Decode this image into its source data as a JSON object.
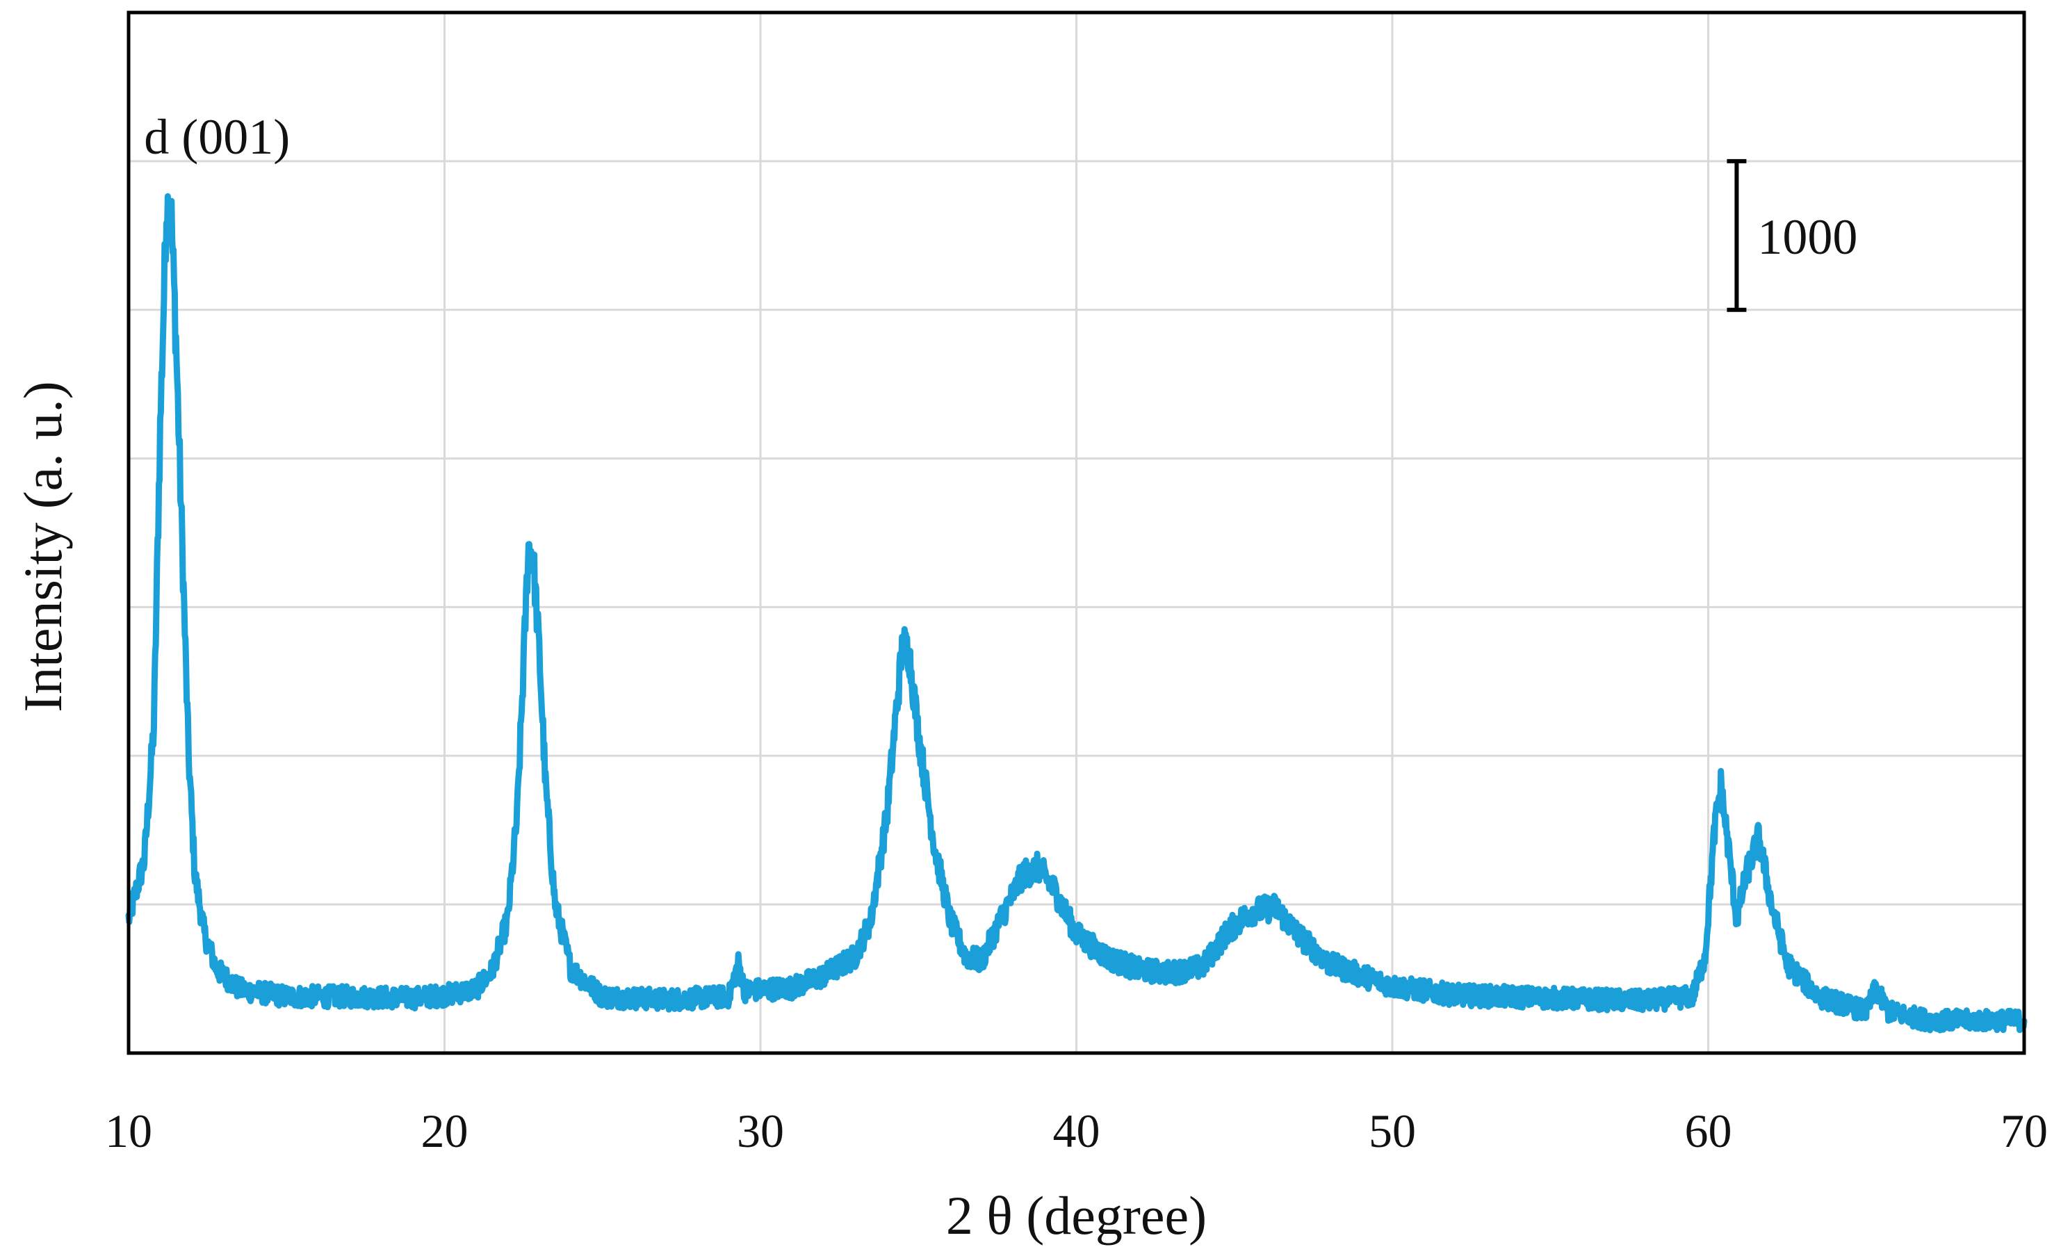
{
  "chart_data": {
    "type": "line",
    "title": "",
    "xlabel": "2 θ (degree)",
    "ylabel": "Intensity (a. u.)",
    "xlim": [
      10,
      70
    ],
    "ylim": [
      0,
      7000
    ],
    "x_ticks": [
      10,
      20,
      30,
      40,
      50,
      60,
      70
    ],
    "y_ticks_labeled": false,
    "grid": true,
    "legend": "none",
    "series_color": "#1a9fd8",
    "annotations": {
      "peak_label": "d (001)",
      "peak_label_x": 12.8,
      "peak_label_y": 6050,
      "scale_bar_label": "1000",
      "scale_bar_value": 1000,
      "scale_bar_x": 60.9,
      "scale_bar_y_bottom": 5000
    },
    "series": [
      {
        "points": [
          [
            10.0,
            900
          ],
          [
            10.5,
            1300
          ],
          [
            10.8,
            2200
          ],
          [
            11.0,
            4200
          ],
          [
            11.2,
            5700
          ],
          [
            11.35,
            5650
          ],
          [
            11.5,
            4800
          ],
          [
            11.7,
            3400
          ],
          [
            11.9,
            2000
          ],
          [
            12.1,
            1200
          ],
          [
            12.4,
            800
          ],
          [
            12.8,
            560
          ],
          [
            13.5,
            430
          ],
          [
            15,
            380
          ],
          [
            17,
            380
          ],
          [
            19,
            370
          ],
          [
            20,
            390
          ],
          [
            21,
            430
          ],
          [
            21.5,
            550
          ],
          [
            22.0,
            900
          ],
          [
            22.3,
            1600
          ],
          [
            22.5,
            2600
          ],
          [
            22.65,
            3400
          ],
          [
            22.8,
            3350
          ],
          [
            23.0,
            2700
          ],
          [
            23.2,
            1800
          ],
          [
            23.5,
            1000
          ],
          [
            24.0,
            570
          ],
          [
            25,
            380
          ],
          [
            27,
            360
          ],
          [
            29,
            380
          ],
          [
            29.3,
            600
          ],
          [
            29.5,
            420
          ],
          [
            31,
            440
          ],
          [
            32,
            520
          ],
          [
            33,
            650
          ],
          [
            33.5,
            900
          ],
          [
            34.0,
            1600
          ],
          [
            34.3,
            2300
          ],
          [
            34.5,
            2750
          ],
          [
            34.7,
            2700
          ],
          [
            35.0,
            2150
          ],
          [
            35.5,
            1400
          ],
          [
            36,
            900
          ],
          [
            36.5,
            650
          ],
          [
            37.0,
            620
          ],
          [
            37.6,
            900
          ],
          [
            38.3,
            1200
          ],
          [
            38.8,
            1250
          ],
          [
            39.3,
            1100
          ],
          [
            40,
            800
          ],
          [
            41,
            640
          ],
          [
            42,
            560
          ],
          [
            43,
            540
          ],
          [
            44,
            580
          ],
          [
            44.8,
            820
          ],
          [
            45.5,
            950
          ],
          [
            46.3,
            980
          ],
          [
            47,
            800
          ],
          [
            48,
            600
          ],
          [
            50,
            450
          ],
          [
            52,
            390
          ],
          [
            55,
            370
          ],
          [
            58,
            350
          ],
          [
            59.5,
            380
          ],
          [
            59.9,
            650
          ],
          [
            60.2,
            1500
          ],
          [
            60.4,
            1800
          ],
          [
            60.6,
            1450
          ],
          [
            60.9,
            900
          ],
          [
            61.2,
            1200
          ],
          [
            61.6,
            1450
          ],
          [
            62.0,
            1000
          ],
          [
            62.5,
            600
          ],
          [
            63.5,
            380
          ],
          [
            65,
            280
          ],
          [
            65.3,
            430
          ],
          [
            65.7,
            280
          ],
          [
            67,
            220
          ],
          [
            70,
            220
          ]
        ]
      }
    ]
  }
}
